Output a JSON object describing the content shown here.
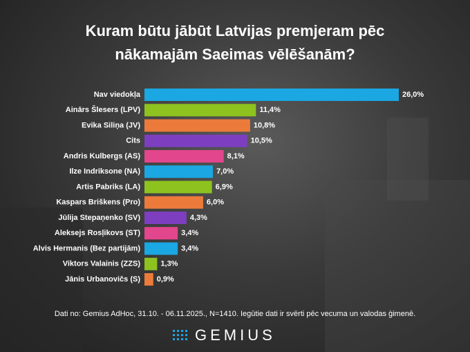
{
  "chart_data": {
    "type": "barh",
    "title": "Kuram būtu jābūt Latvijas premjeram pēc nākamajām Saeimas vēlēšanām?",
    "categories": [
      "Nav viedokļa",
      "Ainārs Šlesers (LPV)",
      "Evika Siliņa (JV)",
      "Cits",
      "Andris Kulbergs (AS)",
      "Ilze Indriksone (NA)",
      "Artis Pabriks (LA)",
      "Kaspars Briškens (Pro)",
      "Jūlija Stepaņenko (SV)",
      "Aleksejs Rosļikovs (ST)",
      "Alvis Hermanis (Bez partijām)",
      "Viktors Valainis (ZZS)",
      "Jānis Urbanovičs (S)"
    ],
    "values": [
      26.0,
      11.4,
      10.8,
      10.5,
      8.1,
      7.0,
      6.9,
      6.0,
      4.3,
      3.4,
      3.4,
      1.3,
      0.9
    ],
    "value_labels": [
      "26,0%",
      "11,4%",
      "10,8%",
      "10,5%",
      "8,1%",
      "7,0%",
      "6,9%",
      "6,0%",
      "4,3%",
      "3,4%",
      "3,4%",
      "1,3%",
      "0,9%"
    ],
    "colors": [
      "#1aa7e2",
      "#8dc21f",
      "#ec7b3b",
      "#7d3fc0",
      "#e2468c",
      "#1aa7e2",
      "#8dc21f",
      "#ec7b3b",
      "#7d3fc0",
      "#e2468c",
      "#1aa7e2",
      "#8dc21f",
      "#ec7b3b"
    ],
    "source": "Dati no: Gemius AdHoc, 31.10. - 06.11.2025., N=1410. Iegūtie dati ir svērti pēc vecuma un valodas ģimenē.",
    "logo": "GEMIUS"
  }
}
